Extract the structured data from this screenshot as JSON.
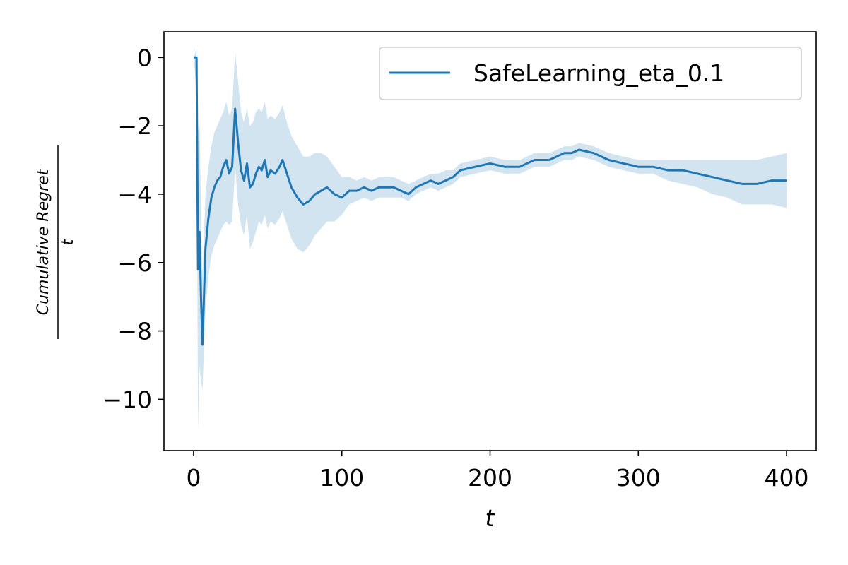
{
  "chart_data": {
    "type": "line",
    "title": "",
    "xlabel": "t",
    "ylabel_numerator": "Cumulative Regret",
    "ylabel_denominator": "t",
    "xlim": [
      -20,
      420
    ],
    "ylim": [
      -11.5,
      0.75
    ],
    "xticks": [
      0,
      100,
      200,
      300,
      400
    ],
    "xtick_labels": [
      "0",
      "100",
      "200",
      "300",
      "400"
    ],
    "yticks": [
      0,
      -2,
      -4,
      -6,
      -8,
      -10
    ],
    "ytick_labels": [
      "0",
      "−2",
      "−4",
      "−6",
      "−8",
      "−10"
    ],
    "grid": false,
    "legend_position": "top-right",
    "series": [
      {
        "name": "SafeLearning_eta_0.1",
        "color": "#1f77b4",
        "band_color": "#1f77b4",
        "x": [
          0,
          2,
          3,
          4,
          5,
          6,
          8,
          10,
          12,
          14,
          16,
          18,
          20,
          22,
          24,
          26,
          28,
          30,
          32,
          34,
          36,
          38,
          40,
          42,
          44,
          46,
          48,
          50,
          52,
          55,
          58,
          60,
          63,
          66,
          70,
          74,
          78,
          82,
          86,
          90,
          95,
          100,
          105,
          110,
          115,
          120,
          125,
          130,
          135,
          140,
          145,
          150,
          155,
          160,
          165,
          170,
          175,
          180,
          190,
          200,
          210,
          220,
          230,
          240,
          250,
          255,
          260,
          270,
          280,
          290,
          300,
          310,
          320,
          330,
          340,
          350,
          360,
          370,
          380,
          390,
          400
        ],
        "y": [
          0,
          0,
          -6.2,
          -5.1,
          -7.0,
          -8.4,
          -5.6,
          -4.7,
          -4.1,
          -3.8,
          -3.6,
          -3.5,
          -3.2,
          -3.0,
          -3.4,
          -3.2,
          -1.5,
          -2.5,
          -3.3,
          -3.6,
          -3.1,
          -3.8,
          -3.7,
          -3.4,
          -3.2,
          -3.3,
          -3.0,
          -3.5,
          -3.3,
          -3.4,
          -3.2,
          -3.0,
          -3.4,
          -3.8,
          -4.1,
          -4.3,
          -4.2,
          -4.0,
          -3.9,
          -3.8,
          -4.0,
          -4.1,
          -3.9,
          -3.9,
          -3.8,
          -3.9,
          -3.8,
          -3.8,
          -3.8,
          -3.9,
          -4.0,
          -3.8,
          -3.7,
          -3.6,
          -3.7,
          -3.6,
          -3.5,
          -3.3,
          -3.2,
          -3.1,
          -3.2,
          -3.2,
          -3.0,
          -3.0,
          -2.8,
          -2.8,
          -2.7,
          -2.8,
          -3.0,
          -3.1,
          -3.2,
          -3.2,
          -3.3,
          -3.3,
          -3.4,
          -3.5,
          -3.6,
          -3.7,
          -3.7,
          -3.6,
          -3.6
        ],
        "lower": [
          0,
          -1.0,
          -10.9,
          -9.0,
          -9.5,
          -9.7,
          -7.4,
          -6.4,
          -5.8,
          -5.5,
          -5.3,
          -5.1,
          -4.9,
          -4.8,
          -4.9,
          -4.8,
          -3.2,
          -4.3,
          -4.9,
          -5.2,
          -4.6,
          -5.6,
          -5.4,
          -5.1,
          -4.8,
          -4.9,
          -4.6,
          -5.0,
          -4.8,
          -4.9,
          -4.7,
          -4.5,
          -4.9,
          -5.3,
          -5.6,
          -5.7,
          -5.5,
          -5.2,
          -5.0,
          -4.8,
          -4.8,
          -4.6,
          -4.3,
          -4.2,
          -4.1,
          -4.2,
          -4.1,
          -4.1,
          -4.1,
          -4.1,
          -4.2,
          -4.0,
          -3.9,
          -3.8,
          -3.9,
          -3.8,
          -3.7,
          -3.5,
          -3.4,
          -3.3,
          -3.4,
          -3.4,
          -3.2,
          -3.2,
          -3.0,
          -3.0,
          -2.9,
          -3.0,
          -3.2,
          -3.3,
          -3.4,
          -3.4,
          -3.6,
          -3.7,
          -3.8,
          -4.0,
          -4.1,
          -4.3,
          -4.3,
          -4.3,
          -4.4
        ],
        "upper": [
          0,
          0.3,
          -2.2,
          -1.9,
          -4.5,
          -6.4,
          -4.0,
          -3.2,
          -2.6,
          -2.2,
          -2.0,
          -1.8,
          -1.6,
          -1.3,
          -1.7,
          -1.5,
          0.2,
          -0.7,
          -1.6,
          -1.9,
          -1.5,
          -2.0,
          -1.9,
          -1.6,
          -1.5,
          -1.6,
          -1.3,
          -1.8,
          -1.7,
          -1.8,
          -1.6,
          -1.4,
          -1.9,
          -2.3,
          -2.6,
          -2.9,
          -2.9,
          -2.8,
          -2.8,
          -2.9,
          -3.2,
          -3.5,
          -3.5,
          -3.6,
          -3.5,
          -3.6,
          -3.5,
          -3.5,
          -3.5,
          -3.6,
          -3.7,
          -3.6,
          -3.5,
          -3.4,
          -3.4,
          -3.3,
          -3.3,
          -3.1,
          -3.0,
          -2.9,
          -3.0,
          -3.0,
          -2.8,
          -2.8,
          -2.6,
          -2.6,
          -2.5,
          -2.6,
          -2.8,
          -2.9,
          -3.0,
          -3.0,
          -3.0,
          -3.0,
          -3.0,
          -3.0,
          -3.0,
          -3.0,
          -3.0,
          -2.9,
          -2.8
        ]
      }
    ]
  }
}
